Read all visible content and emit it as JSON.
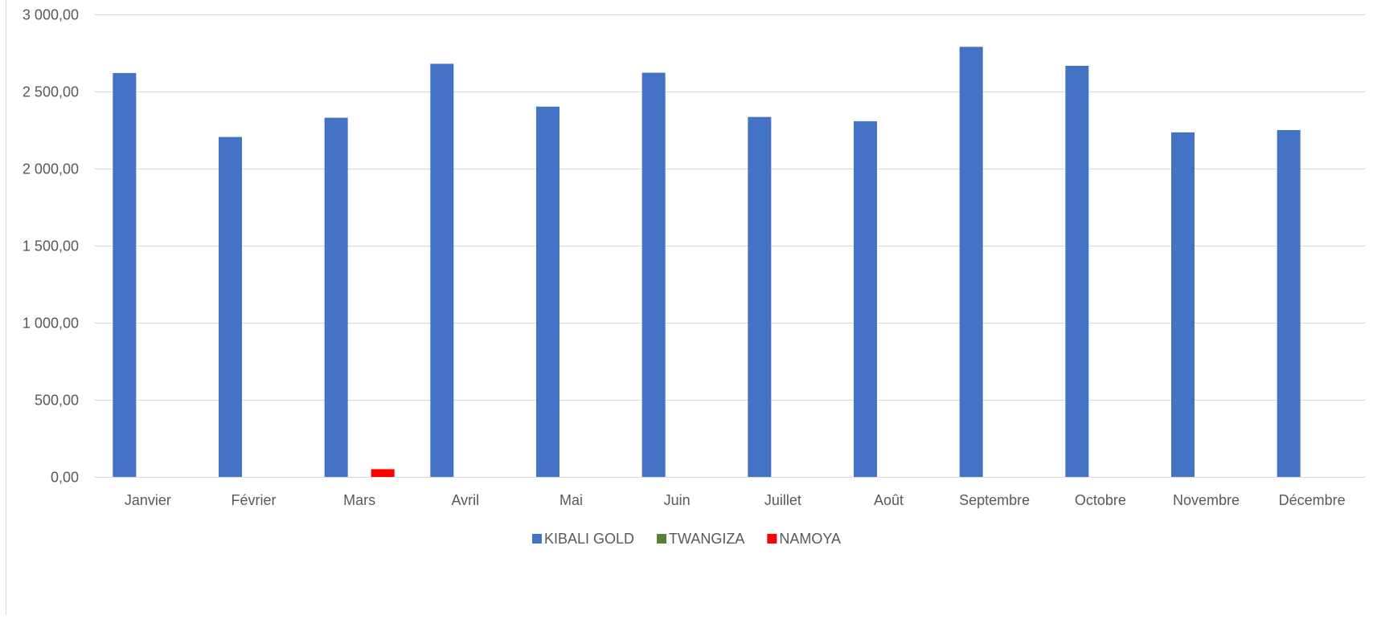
{
  "chart_data": {
    "type": "bar",
    "title": "",
    "xlabel": "",
    "ylabel": "",
    "categories": [
      "Janvier",
      "Février",
      "Mars",
      "Avril",
      "Mai",
      "Juin",
      "Juillet",
      "Août",
      "Septembre",
      "Octobre",
      "Novembre",
      "Décembre"
    ],
    "series": [
      {
        "name": "KIBALI GOLD",
        "color": "#4472C4",
        "values": [
          2620,
          2205,
          2330,
          2680,
          2402,
          2622,
          2335,
          2307,
          2790,
          2667,
          2235,
          2250
        ]
      },
      {
        "name": "TWANGIZA",
        "color": "#548235",
        "values": [
          0,
          0,
          0,
          0,
          0,
          0,
          0,
          0,
          0,
          0,
          0,
          0
        ]
      },
      {
        "name": "NAMOYA",
        "color": "#FF0000",
        "values": [
          0,
          0,
          50,
          0,
          0,
          0,
          0,
          0,
          0,
          0,
          0,
          0
        ]
      }
    ],
    "ylim": [
      0,
      3000
    ],
    "yticks": [
      0,
      500,
      1000,
      1500,
      2000,
      2500,
      3000
    ],
    "ytick_labels": [
      "0,00",
      "500,00",
      "1 000,00",
      "1 500,00",
      "2 000,00",
      "2 500,00",
      "3 000,00"
    ],
    "grid": true,
    "legend_position": "bottom"
  }
}
